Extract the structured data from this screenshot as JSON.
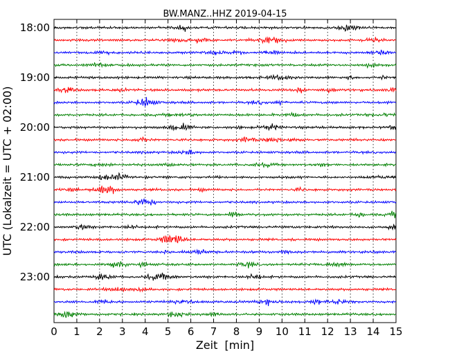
{
  "chart_data": {
    "type": "line",
    "title": "BW.MANZ..HHZ 2019-04-15",
    "xlabel": "Zeit  [min]",
    "ylabel": "UTC (Lokalzeit = UTC + 02:00)",
    "xlim": [
      0,
      15
    ],
    "x_ticks": [
      "0",
      "1",
      "2",
      "3",
      "4",
      "5",
      "6",
      "7",
      "8",
      "9",
      "10",
      "11",
      "12",
      "13",
      "14",
      "15"
    ],
    "y_ticks": [
      "18:00",
      "19:00",
      "20:00",
      "21:00",
      "22:00",
      "23:00"
    ],
    "trace_minutes": 15,
    "trace_start": "18:00",
    "trace_count": 24,
    "trace_colors": [
      "#000000",
      "#ff0000",
      "#0000ff",
      "#008000"
    ],
    "vertical_grid": "dotted"
  }
}
